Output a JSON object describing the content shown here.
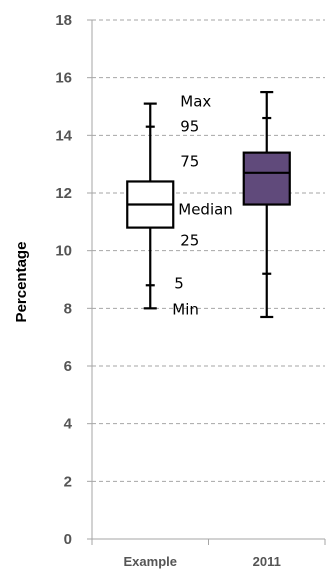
{
  "chart_data": {
    "type": "box",
    "ylabel": "Percentage",
    "xlabel": "",
    "ylim": [
      0,
      18
    ],
    "yticks": [
      0,
      2,
      4,
      6,
      8,
      10,
      12,
      14,
      16,
      18
    ],
    "grid": true,
    "categories": [
      "Example",
      "2011"
    ],
    "boxes": [
      {
        "category": "Example",
        "min": 8.0,
        "p5": 8.8,
        "p25": 10.8,
        "median": 11.6,
        "p75": 12.4,
        "p95": 14.3,
        "max": 15.1,
        "fill": "#ffffff"
      },
      {
        "category": "2011",
        "min": 7.7,
        "p5": 9.2,
        "p25": 11.6,
        "median": 12.7,
        "p75": 13.4,
        "p95": 14.6,
        "max": 15.5,
        "fill": "#604a7b"
      }
    ],
    "annotations": {
      "max": "Max",
      "p95": "95",
      "p75": "75",
      "median": "Median",
      "p25": "25",
      "p5": "5",
      "min": "Min"
    }
  }
}
